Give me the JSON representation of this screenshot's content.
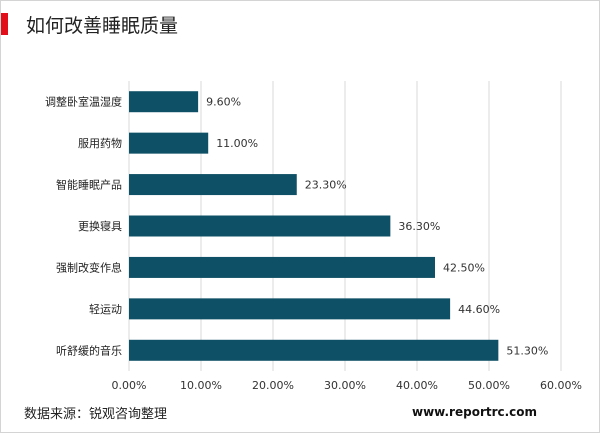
{
  "title": "如何改善睡眠质量",
  "source": "数据来源：锐观咨询整理",
  "website": "www.reportrc.com",
  "colors": {
    "accent": "#e20f1b",
    "bar": "#0e5066",
    "grid": "#d9d9d9"
  },
  "chart_data": {
    "type": "bar",
    "orientation": "horizontal",
    "categories": [
      "调整卧室温湿度",
      "服用药物",
      "智能睡眠产品",
      "更换寝具",
      "强制改变作息",
      "轻运动",
      "听舒缓的音乐"
    ],
    "values": [
      9.6,
      11.0,
      23.3,
      36.3,
      42.5,
      44.6,
      51.3
    ],
    "value_labels": [
      "9.60%",
      "11.00%",
      "23.30%",
      "36.30%",
      "42.50%",
      "44.60%",
      "51.30%"
    ],
    "xlim": [
      0,
      60
    ],
    "x_ticks": [
      "0.00%",
      "10.00%",
      "20.00%",
      "30.00%",
      "40.00%",
      "50.00%",
      "60.00%"
    ],
    "grid": true,
    "legend": "none"
  }
}
